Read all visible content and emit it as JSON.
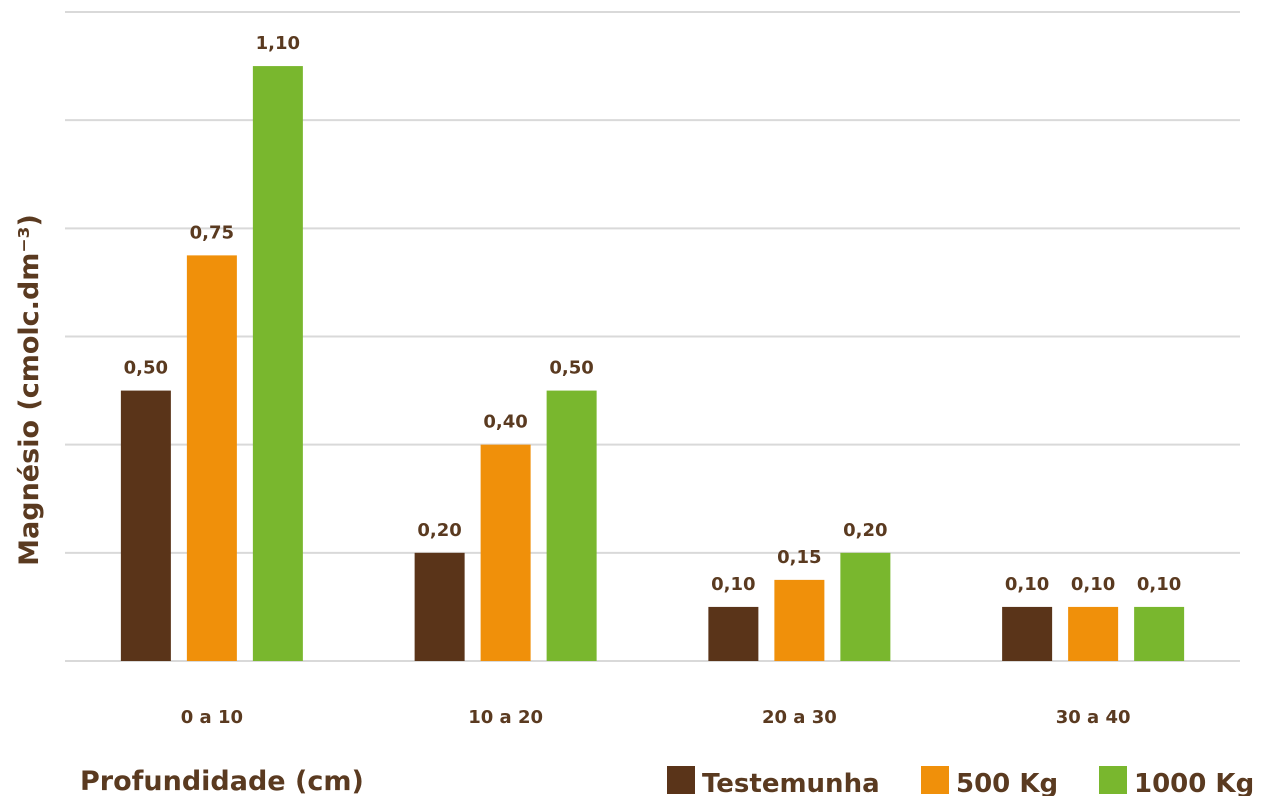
{
  "chart_data": {
    "type": "bar",
    "title": "",
    "xlabel": "Profundidade (cm)",
    "ylabel": "Magnésio (cmolc.dm⁻³)",
    "categories": [
      "0 a 10",
      "10 a 20",
      "20 a 30",
      "30 a 40"
    ],
    "series": [
      {
        "name": "Testemunha",
        "values": [
          0.5,
          0.2,
          0.1,
          0.1
        ],
        "labels": [
          "0,50",
          "0,20",
          "0,10",
          "0,10"
        ],
        "color": "#5a3419"
      },
      {
        "name": "500 Kg",
        "values": [
          0.75,
          0.4,
          0.15,
          0.1
        ],
        "labels": [
          "0,75",
          "0,40",
          "0,15",
          "0,10"
        ],
        "color": "#f0900a"
      },
      {
        "name": "1000 Kg",
        "values": [
          1.1,
          0.5,
          0.2,
          0.1
        ],
        "labels": [
          "1,10",
          "0,50",
          "0,20",
          "0,10"
        ],
        "color": "#79b72e"
      }
    ],
    "ylim": [
      0,
      1.2
    ],
    "grid": true,
    "legend": "bottom-right",
    "colors": {
      "grid": "#d9d9d9",
      "text": "#5a3a20"
    }
  }
}
